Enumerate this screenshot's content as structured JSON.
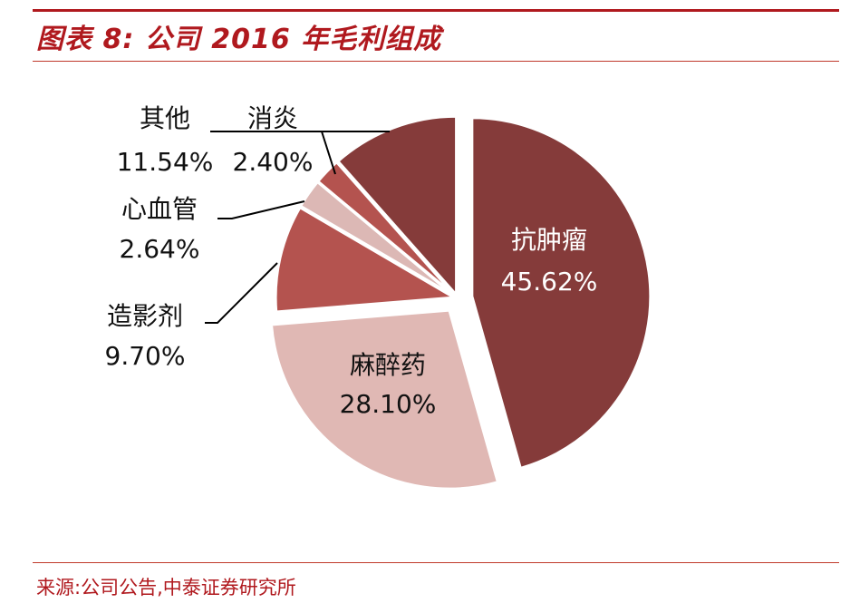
{
  "figure": {
    "title": "图表 8:  公司 2016 年毛利组成",
    "source": "来源:公司公告,中泰证券研究所"
  },
  "colors": {
    "accent": "#b0191e",
    "slices": [
      "#853b3a",
      "#e0b8b4",
      "#b4534f",
      "#dcb8b5",
      "#b4534f",
      "#853b3a"
    ]
  },
  "chart_data": {
    "type": "pie",
    "categories": [
      "抗肿瘤",
      "麻醉药",
      "造影剂",
      "心血管",
      "消炎",
      "其他"
    ],
    "values": [
      45.62,
      28.1,
      9.7,
      2.64,
      2.4,
      11.54
    ],
    "value_labels": [
      "45.62%",
      "28.10%",
      "9.70%",
      "2.64%",
      "2.40%",
      "11.54%"
    ],
    "start": "top",
    "direction": "clockwise",
    "exploded": [
      "抗肿瘤",
      "麻醉药"
    ],
    "title": "",
    "legend": "none"
  }
}
